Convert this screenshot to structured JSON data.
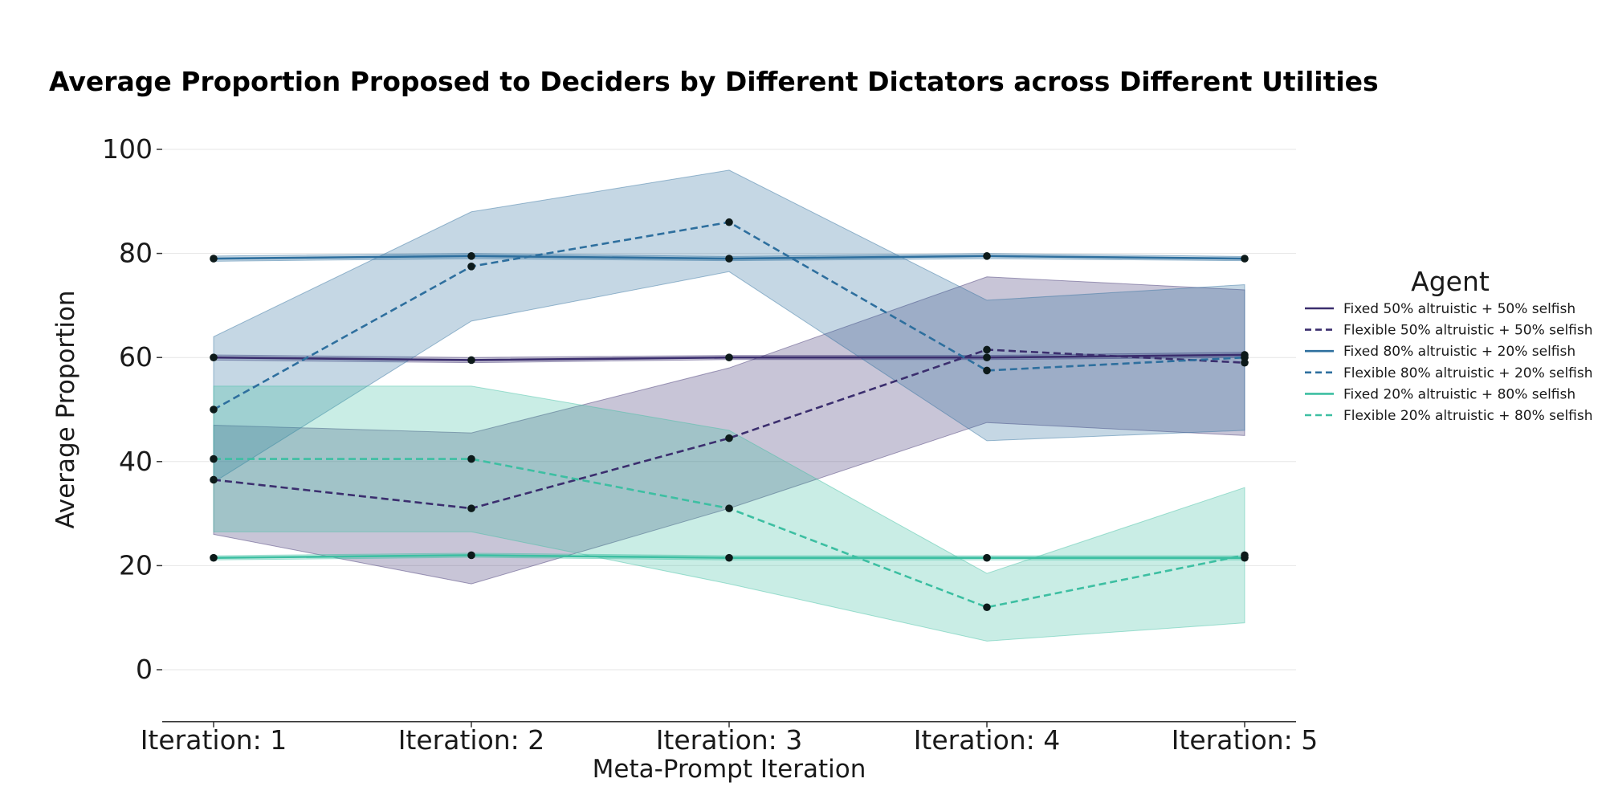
{
  "chart_data": {
    "type": "line",
    "title": "Average Proportion Proposed to Deciders by Different Dictators across Different Utilities",
    "xlabel": "Meta-Prompt Iteration",
    "ylabel": "Average Proportion",
    "categories": [
      "Iteration: 1",
      "Iteration: 2",
      "Iteration: 3",
      "Iteration: 4",
      "Iteration: 5"
    ],
    "ylim": [
      -10,
      100
    ],
    "yticks": [
      0,
      20,
      40,
      60,
      80,
      100
    ],
    "grid": "horizontal",
    "legend": {
      "title": "Agent",
      "placement": "right"
    },
    "series": [
      {
        "name": "Fixed 50% altruistic + 50% selfish",
        "style": "solid",
        "color": "#3b2e6e",
        "values": [
          60.0,
          59.5,
          60.0,
          60.0,
          60.5
        ],
        "ci_lower": [
          59.5,
          59.0,
          59.6,
          59.6,
          60.0
        ],
        "ci_upper": [
          60.5,
          60.0,
          60.4,
          60.4,
          61.0
        ]
      },
      {
        "name": "Flexible 50% altruistic + 50% selfish",
        "style": "dashed",
        "color": "#3b2e6e",
        "values": [
          36.5,
          31.0,
          44.5,
          61.5,
          59.0
        ],
        "ci_lower": [
          26.0,
          16.5,
          31.0,
          47.5,
          45.0
        ],
        "ci_upper": [
          47.0,
          45.5,
          58.0,
          75.5,
          73.0
        ]
      },
      {
        "name": "Fixed 80% altruistic + 20% selfish",
        "style": "solid",
        "color": "#2e6f9e",
        "values": [
          79.0,
          79.5,
          79.0,
          79.5,
          79.0
        ],
        "ci_lower": [
          78.5,
          79.0,
          78.6,
          79.0,
          78.6
        ],
        "ci_upper": [
          79.5,
          80.0,
          79.4,
          80.0,
          79.4
        ]
      },
      {
        "name": "Flexible 80% altruistic + 20% selfish",
        "style": "dashed",
        "color": "#2e6f9e",
        "values": [
          50.0,
          77.5,
          86.0,
          57.5,
          60.0
        ],
        "ci_lower": [
          36.0,
          67.0,
          76.5,
          44.0,
          46.0
        ],
        "ci_upper": [
          64.0,
          88.0,
          96.0,
          71.0,
          74.0
        ]
      },
      {
        "name": "Fixed 20% altruistic + 80% selfish",
        "style": "solid",
        "color": "#3dbfa2",
        "values": [
          21.5,
          22.0,
          21.5,
          21.5,
          21.5
        ],
        "ci_lower": [
          21.1,
          21.6,
          21.1,
          21.1,
          21.1
        ],
        "ci_upper": [
          21.9,
          22.4,
          21.9,
          21.9,
          21.9
        ]
      },
      {
        "name": "Flexible 20% altruistic + 80% selfish",
        "style": "dashed",
        "color": "#3dbfa2",
        "values": [
          40.5,
          40.5,
          31.0,
          12.0,
          22.0
        ],
        "ci_lower": [
          26.5,
          26.5,
          16.5,
          5.5,
          9.0
        ],
        "ci_upper": [
          54.5,
          54.5,
          46.0,
          18.5,
          35.0
        ]
      }
    ]
  }
}
